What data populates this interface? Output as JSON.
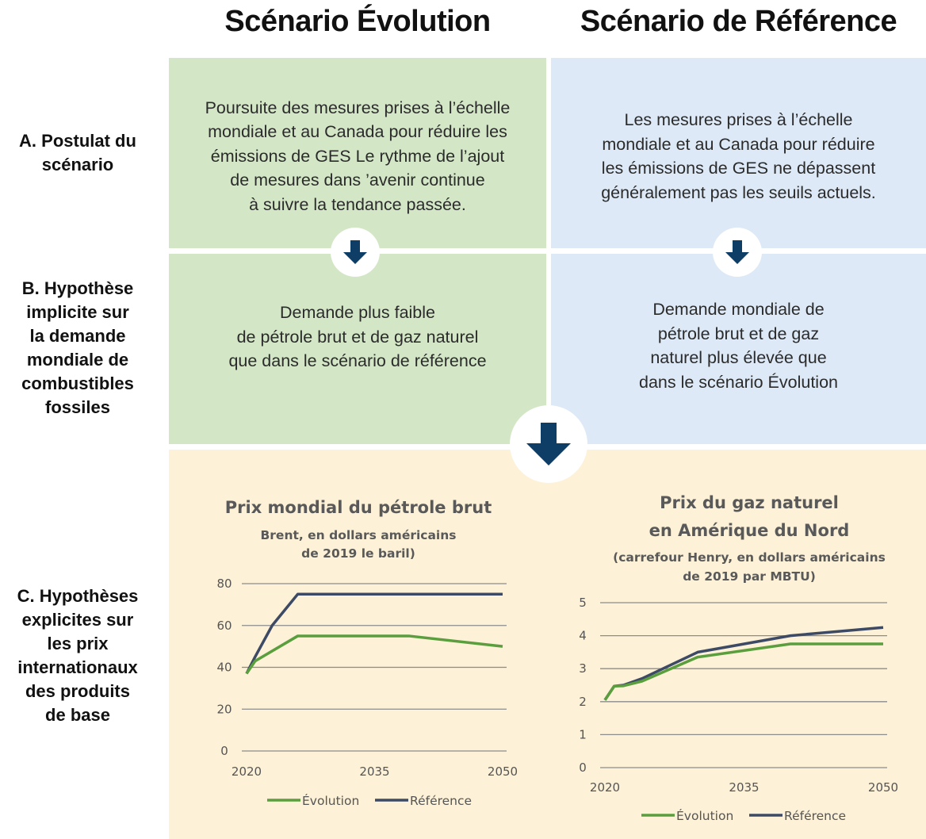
{
  "columns": {
    "evolution": {
      "title": "Scénario Évolution",
      "color": "#d3e7c7"
    },
    "reference": {
      "title": "Scénario de Référence",
      "color": "#dde9f6"
    }
  },
  "rows": {
    "a": {
      "label": "A. Postulat du\nscénario"
    },
    "b": {
      "label": "B. Hypothèse\nimplicite sur\nla demande\nmondiale de\ncombustibles\nfossiles"
    },
    "c": {
      "label": "C. Hypothèses\nexplicites sur\nles prix\ninternationaux\ndes produits\nde base"
    }
  },
  "panels": {
    "a_evolution": "Poursuite des mesures prises à l’échelle\nmondiale et au Canada pour réduire les\némissions de GES Le rythme de l’ajout\nde mesures dans ’avenir continue\nà suivre la tendance passée.",
    "a_reference": "Les mesures prises à l’échelle\nmondiale et au Canada pour réduire\nles émissions de GES ne dépassent\ngénéralement pas les seuils actuels.",
    "b_evolution": "Demande plus faible\nde pétrole brut et de gaz naturel\nque dans le scénario de référence",
    "b_reference": "Demande mondiale de\npétrole brut et de gaz\nnaturel plus élevée que\ndans le scénario Évolution"
  },
  "arrows": {
    "icon": "arrow-down-icon",
    "color": "#0e3d66"
  },
  "colors": {
    "evolution_line": "#5a9e3e",
    "reference_line": "#3d4a66",
    "grid": "#8c8c8c",
    "bottom_panel": "#fdf1d7"
  },
  "chart_data": [
    {
      "type": "line",
      "title": "Prix mondial du pétrole brut",
      "subtitle": "Brent, en dollars américains\nde 2019 le baril)",
      "xlabel": "",
      "ylabel": "",
      "x_ticks": [
        "2020",
        "2035",
        "2050"
      ],
      "y_ticks": [
        "0",
        "20",
        "40",
        "60",
        "80"
      ],
      "xlim": [
        2020,
        2050
      ],
      "ylim": [
        0,
        80
      ],
      "grid": true,
      "legend_position": "bottom",
      "series": [
        {
          "name": "Évolution",
          "x": [
            2020,
            2021,
            2026,
            2039,
            2050
          ],
          "values": [
            37,
            43,
            55,
            55,
            50
          ]
        },
        {
          "name": "Référence",
          "x": [
            2020,
            2021,
            2023,
            2026,
            2050
          ],
          "values": [
            37,
            45,
            60,
            75,
            75
          ]
        }
      ]
    },
    {
      "type": "line",
      "title": "Prix du gaz naturel\nen Amérique du Nord",
      "subtitle": "(carrefour Henry, en dollars américains\nde 2019 par MBTU)",
      "xlabel": "",
      "ylabel": "",
      "x_ticks": [
        "2020",
        "2035",
        "2050"
      ],
      "y_ticks": [
        "0",
        "1",
        "2",
        "3",
        "4",
        "5"
      ],
      "xlim": [
        2020,
        2050
      ],
      "ylim": [
        0,
        5
      ],
      "grid": true,
      "legend_position": "bottom",
      "series": [
        {
          "name": "Évolution",
          "x": [
            2020,
            2021,
            2022,
            2024,
            2030,
            2040,
            2050
          ],
          "values": [
            2.05,
            2.47,
            2.48,
            2.62,
            3.35,
            3.75,
            3.75
          ]
        },
        {
          "name": "Référence",
          "x": [
            2020,
            2021,
            2022,
            2024,
            2030,
            2040,
            2050
          ],
          "values": [
            2.05,
            2.47,
            2.5,
            2.7,
            3.5,
            4.0,
            4.25
          ]
        }
      ]
    }
  ]
}
